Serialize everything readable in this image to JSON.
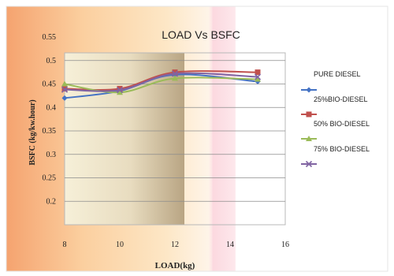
{
  "chart_data": {
    "type": "line",
    "title": "LOAD Vs BSFC",
    "xlabel": "LOAD(kg)",
    "ylabel": "BSFC (kg/kw.hour)",
    "xlim": [
      8,
      16
    ],
    "ylim": [
      0.15,
      0.55
    ],
    "x_ticks": [
      "8",
      "10",
      "12",
      "14",
      "16"
    ],
    "y_ticks": [
      "0.2",
      "0.25",
      "0.3",
      "0.35",
      "0.4",
      "0.45",
      "0.5",
      "0.55"
    ],
    "grid": "horizontal",
    "legend_position": "right",
    "series": [
      {
        "name": "PURE DIESEL",
        "color": "#4472C4",
        "marker": "diamond",
        "x": [
          8,
          10,
          12,
          15
        ],
        "y": [
          0.42,
          0.435,
          0.47,
          0.455
        ]
      },
      {
        "name": "25%BIO-DIESEL",
        "color": "#C0504D",
        "marker": "square",
        "x": [
          8,
          10,
          12,
          15
        ],
        "y": [
          0.44,
          0.44,
          0.475,
          0.475
        ]
      },
      {
        "name": "50% BIO-DIESEL",
        "color": "#9BBB59",
        "marker": "triangle",
        "x": [
          8,
          10,
          12,
          15
        ],
        "y": [
          0.45,
          0.432,
          0.462,
          0.46
        ]
      },
      {
        "name": "75% BIO-DIESEL",
        "color": "#8064A2",
        "marker": "x",
        "x": [
          8,
          10,
          12,
          15
        ],
        "y": [
          0.438,
          0.437,
          0.472,
          0.465
        ]
      }
    ]
  }
}
